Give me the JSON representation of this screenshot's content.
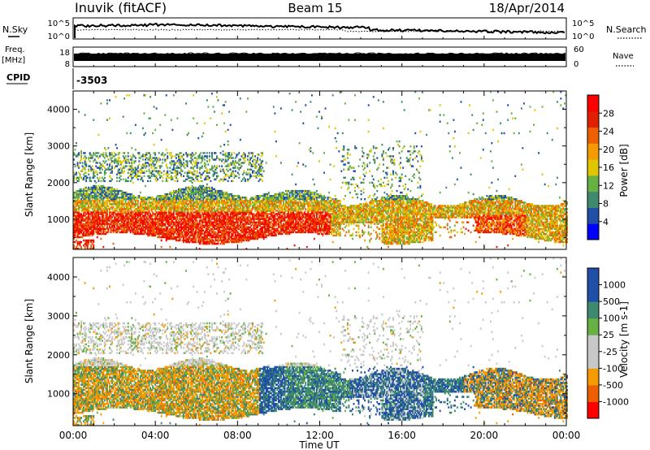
{
  "header": {
    "station": "Inuvik (fitACF)",
    "beam": "Beam 15",
    "date": "18/Apr/2014"
  },
  "top_panels": {
    "nsky_label": "N.Sky",
    "nsearch_label": "N.Search",
    "freq_label_1": "Freq.",
    "freq_label_2": "[MHz]",
    "nave_label": "Nave",
    "cpid_label": "CPID",
    "cpid_value": "-3503",
    "noise_ticks_left": [
      "10^5",
      "10^0"
    ],
    "noise_ticks_right": [
      "10^5",
      "10^0"
    ],
    "freq_ticks_left": [
      "18",
      "8"
    ],
    "freq_ticks_right": [
      "60",
      "0"
    ]
  },
  "colors": {
    "power_scale": [
      "#0000ff",
      "#1f4fa6",
      "#3f8a6e",
      "#67b043",
      "#e0c600",
      "#f59a00",
      "#ee5f00",
      "#e02000",
      "#ff0000"
    ],
    "velocity_scale": [
      "#ff0000",
      "#ee5f00",
      "#f59a00",
      "#c8c8c8",
      "#c8c8c8",
      "#67b043",
      "#3f8a6e",
      "#1f4fa6",
      "#1f4fa6"
    ]
  },
  "chart_data": [
    {
      "type": "heatmap",
      "panel": "power",
      "ylabel": "Slant Range [km]",
      "ylim": [
        180,
        4500
      ],
      "yticks": [
        1000,
        2000,
        3000,
        4000
      ],
      "xlim": [
        0,
        24
      ],
      "colorbar_label": "Power [dB]",
      "colorbar_ticks": [
        4,
        8,
        12,
        16,
        20,
        24,
        28
      ],
      "colorbar_range": [
        0,
        32
      ]
    },
    {
      "type": "heatmap",
      "panel": "velocity",
      "ylabel": "Slant Range [km]",
      "ylim": [
        180,
        4500
      ],
      "yticks": [
        1000,
        2000,
        3000,
        4000
      ],
      "xlim": [
        0,
        24
      ],
      "xlabel": "Time UT",
      "xticks": [
        "00:00",
        "04:00",
        "08:00",
        "12:00",
        "16:00",
        "20:00",
        "00:00"
      ],
      "colorbar_label": "Velocity [m s-1]",
      "colorbar_ticks": [
        "1000",
        "500",
        "100",
        "25",
        "-25",
        "-100",
        "-500",
        "-1000"
      ]
    }
  ]
}
